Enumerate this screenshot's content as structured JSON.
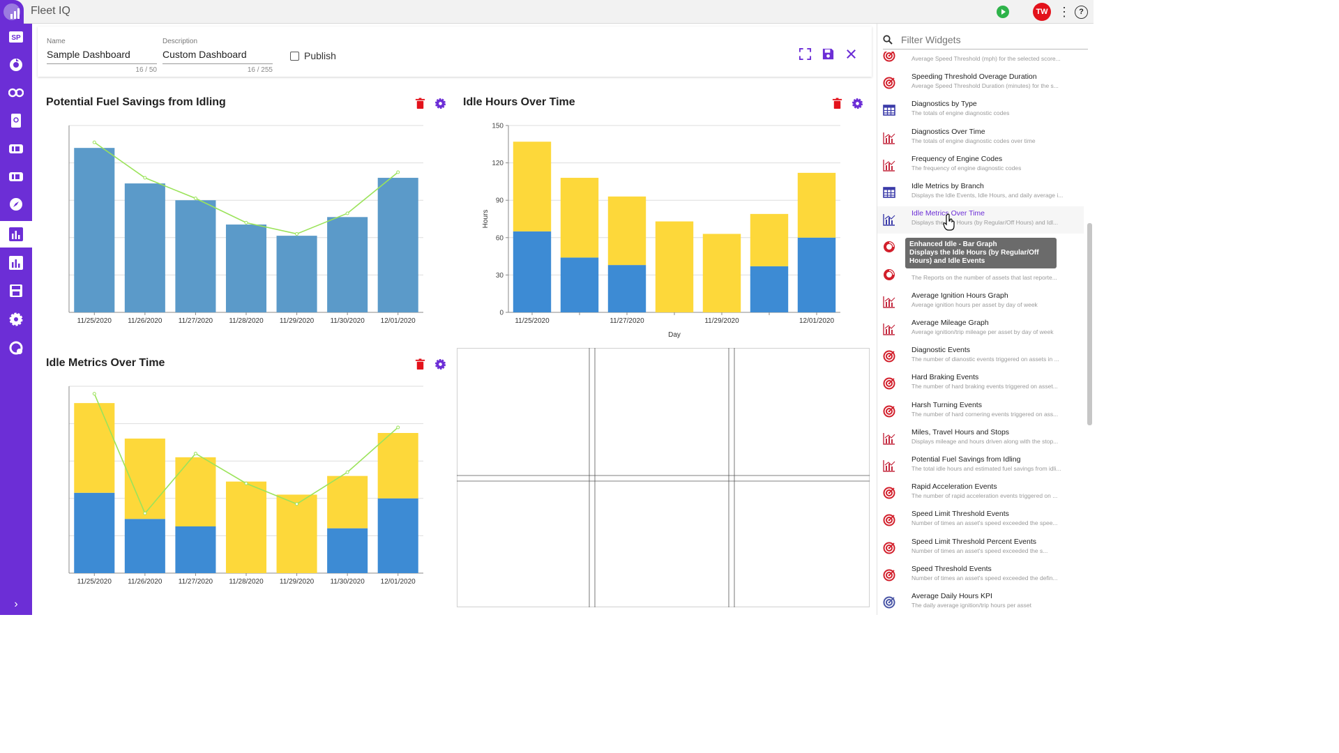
{
  "app": {
    "title": "Fleet IQ",
    "user_initials": "TW"
  },
  "colors": {
    "brand": "#6c2ed6",
    "blue": "#3d8bd4",
    "steel": "#5b9ac9",
    "yellow": "#fdd83a",
    "green": "#9be35a",
    "delete": "#e3121b"
  },
  "sidebar": {
    "items": [
      {
        "name": "sp-logo-icon"
      },
      {
        "name": "refresh-icon"
      },
      {
        "name": "key-icon"
      },
      {
        "name": "tablet-icon"
      },
      {
        "name": "truck-icon"
      },
      {
        "name": "truck-alt-icon"
      },
      {
        "name": "compass-icon"
      },
      {
        "name": "dashboard-icon",
        "active": true
      },
      {
        "name": "reports-icon"
      },
      {
        "name": "save-icon"
      },
      {
        "name": "settings-icon"
      },
      {
        "name": "support-icon"
      }
    ],
    "expand_icon": "chevron-right-icon"
  },
  "editor": {
    "name_label": "Name",
    "name_value": "Sample Dashboard",
    "name_count": "16 / 50",
    "desc_label": "Description",
    "desc_value": "Custom Dashboard",
    "desc_count": "16 / 255",
    "publish_label": "Publish"
  },
  "widgets": {
    "fuel": {
      "title": "Potential Fuel Savings from Idling"
    },
    "idle_hours": {
      "title": "Idle Hours Over Time",
      "ylabel": "Hours",
      "xlabel": "Day"
    },
    "idle_metrics": {
      "title": "Idle Metrics Over Time"
    }
  },
  "chart_data": [
    {
      "type": "bar",
      "title": "Potential Fuel Savings from Idling",
      "categories": [
        "11/25/2020",
        "11/26/2020",
        "11/27/2020",
        "11/28/2020",
        "11/29/2020",
        "11/30/2020",
        "12/01/2020"
      ],
      "ylim": [
        0,
        1
      ],
      "series": [
        {
          "kind": "bar",
          "values": [
            0.88,
            0.69,
            0.6,
            0.47,
            0.41,
            0.51,
            0.72
          ]
        },
        {
          "kind": "line",
          "values": [
            0.91,
            0.72,
            0.61,
            0.48,
            0.42,
            0.53,
            0.75
          ]
        }
      ],
      "grid": true
    },
    {
      "type": "bar",
      "stacked": true,
      "title": "Idle Hours Over Time",
      "xlabel": "Day",
      "ylabel": "Hours",
      "categories": [
        "11/25/2020",
        "11/26/2020",
        "11/27/2020",
        "11/28/2020",
        "11/29/2020",
        "11/30/2020",
        "12/01/2020"
      ],
      "tick_labels_x": [
        "11/25/2020",
        "",
        "11/27/2020",
        "",
        "11/29/2020",
        "",
        "12/01/2020"
      ],
      "ylim": [
        0,
        150
      ],
      "yticks": [
        0,
        30,
        60,
        90,
        120,
        150
      ],
      "series": [
        {
          "color": "blue",
          "values": [
            65,
            44,
            38,
            0,
            0,
            37,
            60
          ]
        },
        {
          "color": "yellow",
          "values": [
            72,
            64,
            55,
            73,
            63,
            42,
            52
          ]
        }
      ],
      "grid": true
    },
    {
      "type": "bar",
      "stacked": true,
      "title": "Idle Metrics Over Time",
      "categories": [
        "11/25/2020",
        "11/26/2020",
        "11/27/2020",
        "11/28/2020",
        "11/29/2020",
        "11/30/2020",
        "12/01/2020"
      ],
      "ylim": [
        0,
        1
      ],
      "series": [
        {
          "kind": "bar",
          "color": "blue",
          "values": [
            0.43,
            0.29,
            0.25,
            0,
            0,
            0.24,
            0.4
          ]
        },
        {
          "kind": "bar",
          "color": "yellow",
          "values": [
            0.48,
            0.43,
            0.37,
            0.49,
            0.42,
            0.28,
            0.35
          ]
        },
        {
          "kind": "line",
          "values": [
            0.96,
            0.32,
            0.64,
            0.48,
            0.37,
            0.54,
            0.78
          ]
        }
      ],
      "grid": true
    }
  ],
  "widget_panel": {
    "search_placeholder": "Filter Widgets",
    "items": [
      {
        "name": "",
        "desc": "Average Speed Threshold (mph) for the selected score...",
        "icon": "target-icon"
      },
      {
        "name": "Speeding Threshold Overage Duration",
        "desc": "Average Speed Threshold Duration (minutes) for the s...",
        "icon": "target-icon"
      },
      {
        "name": "Diagnostics by Type",
        "desc": "The totals of engine diagnostic codes",
        "icon": "table-icon"
      },
      {
        "name": "Diagnostics Over Time",
        "desc": "The totals of engine diagnostic codes over time",
        "icon": "chart-icon"
      },
      {
        "name": "Frequency of Engine Codes",
        "desc": "The frequency of engine diagnostic codes",
        "icon": "chart-icon"
      },
      {
        "name": "Idle Metrics by Branch",
        "desc": "Displays the Idle Events, Idle Hours, and daily average i...",
        "icon": "table-icon"
      },
      {
        "name": "Idle Metrics Over Time",
        "desc": "Displays the Idle Hours (by Regular/Off Hours) and Idl...",
        "icon": "chart-icon",
        "highlight": true
      },
      {
        "name": "",
        "desc": "",
        "icon": "donut-icon"
      },
      {
        "name": "",
        "desc": "The Reports on the number of assets that last reporte...",
        "icon": "donut-icon"
      },
      {
        "name": "Average Ignition Hours Graph",
        "desc": "Average ignition hours per asset by day of week",
        "icon": "chart-icon"
      },
      {
        "name": "Average Mileage Graph",
        "desc": "Average ignition/trip mileage per asset by day of week",
        "icon": "chart-icon"
      },
      {
        "name": "Diagnostic Events",
        "desc": "The number of dianostic events triggered on assets in ...",
        "icon": "target-icon"
      },
      {
        "name": "Hard Braking Events",
        "desc": "The number of hard braking events triggered on asset...",
        "icon": "target-icon"
      },
      {
        "name": "Harsh Turning Events",
        "desc": "The number of hard cornering events triggered on ass...",
        "icon": "target-icon"
      },
      {
        "name": "Miles, Travel Hours and Stops",
        "desc": "Displays mileage and hours driven along with the stop...",
        "icon": "chart-icon"
      },
      {
        "name": "Potential Fuel Savings from Idling",
        "desc": "The total idle hours and estimated fuel savings from idli...",
        "icon": "chart-icon"
      },
      {
        "name": "Rapid Acceleration Events",
        "desc": "The number of rapid acceleration events triggered on ...",
        "icon": "target-icon"
      },
      {
        "name": "Speed Limit Threshold Events",
        "desc": "Number of times an asset's speed exceeded the spee...",
        "icon": "target-icon"
      },
      {
        "name": "Speed Limit Threshold Percent Events",
        "desc": "Number of times an asset's speed exceeded the s...",
        "icon": "target-icon"
      },
      {
        "name": "Speed Threshold Events",
        "desc": "Number of times an asset's speed exceeded the defin...",
        "icon": "target-icon"
      },
      {
        "name": "Average Daily Hours KPI",
        "desc": "The daily average ignition/trip hours per asset",
        "icon": "target-blue-icon"
      }
    ],
    "tooltip_title": "Enhanced Idle - Bar Graph",
    "tooltip_text": "Displays the Idle Hours (by Regular/Off Hours) and Idle Events"
  }
}
